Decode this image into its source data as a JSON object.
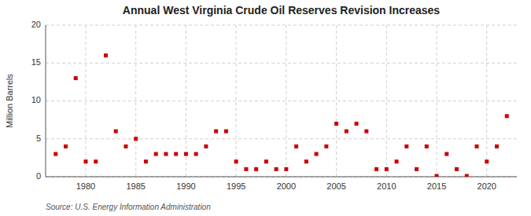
{
  "chart_data": {
    "type": "scatter",
    "title": "Annual West Virginia Crude Oil Reserves Revision Increases",
    "ylabel": "Million Barrels",
    "source": "Source: U.S. Energy Information Administration",
    "color": "#cc0000",
    "marker": "square",
    "grid": true,
    "xlim": [
      1976,
      2023
    ],
    "ylim": [
      0,
      20
    ],
    "xticks": [
      1980,
      1985,
      1990,
      1995,
      2000,
      2005,
      2010,
      2015,
      2020
    ],
    "yticks": [
      0,
      5,
      10,
      15,
      20
    ],
    "x": [
      1977,
      1978,
      1979,
      1980,
      1981,
      1982,
      1983,
      1984,
      1985,
      1986,
      1987,
      1988,
      1989,
      1990,
      1991,
      1992,
      1993,
      1994,
      1995,
      1996,
      1997,
      1998,
      1999,
      2000,
      2001,
      2002,
      2003,
      2004,
      2005,
      2006,
      2007,
      2008,
      2009,
      2010,
      2011,
      2012,
      2013,
      2014,
      2015,
      2016,
      2017,
      2018,
      2019,
      2020,
      2021,
      2022
    ],
    "values": [
      3.0,
      4.0,
      13.0,
      2.0,
      2.0,
      16.0,
      6.0,
      4.0,
      5.0,
      2.0,
      3.0,
      3.0,
      3.0,
      3.0,
      3.0,
      4.0,
      6.0,
      6.0,
      2.0,
      1.0,
      1.0,
      2.0,
      1.0,
      1.0,
      4.0,
      2.0,
      3.0,
      4.0,
      7.0,
      6.0,
      7.0,
      6.0,
      1.0,
      1.0,
      2.0,
      4.0,
      1.0,
      4.0,
      0.1,
      3.0,
      1.0,
      0.1,
      4.0,
      2.0,
      4.0,
      8.0
    ]
  }
}
